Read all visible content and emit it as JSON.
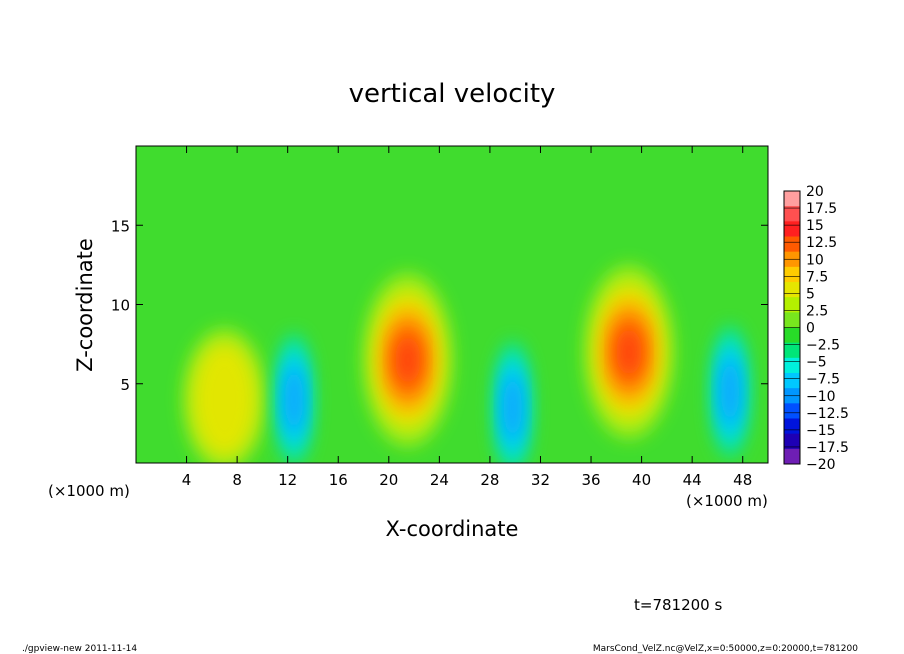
{
  "chart_data": {
    "type": "heatmap",
    "title": "vertical velocity",
    "xlabel": "X-coordinate",
    "ylabel": "Z-coordinate",
    "x_unit_label": "(×1000 m)",
    "x_unit_label_right": "(×1000 m)",
    "xlim": [
      0,
      50
    ],
    "ylim": [
      0,
      20
    ],
    "x_ticks": [
      "4",
      "8",
      "12",
      "16",
      "20",
      "24",
      "28",
      "32",
      "36",
      "40",
      "44",
      "48"
    ],
    "x_tick_values": [
      4,
      8,
      12,
      16,
      20,
      24,
      28,
      32,
      36,
      40,
      44,
      48
    ],
    "y_ticks": [
      "5",
      "10",
      "15"
    ],
    "y_tick_values": [
      5,
      10,
      15
    ],
    "colorbar": {
      "labels": [
        "20",
        "17.5",
        "15",
        "12.5",
        "10",
        "7.5",
        "5",
        "2.5",
        "0",
        "−2.5",
        "−5",
        "−7.5",
        "−10",
        "−12.5",
        "−15",
        "−17.5",
        "−20"
      ],
      "levels": [
        20,
        17.5,
        15,
        12.5,
        10,
        7.5,
        5,
        2.5,
        0,
        -2.5,
        -5,
        -7.5,
        -10,
        -12.5,
        -15,
        -17.5,
        -20
      ],
      "colors": [
        "#ff9f9f",
        "#ff5050",
        "#ff2020",
        "#ff5a00",
        "#ff9600",
        "#ffcc00",
        "#e6e600",
        "#b4f000",
        "#78e61e",
        "#28dc28",
        "#00e678",
        "#00f0dc",
        "#00c8ff",
        "#0096ff",
        "#0050ff",
        "#0014dc",
        "#1e00b4",
        "#6e1eb4"
      ]
    },
    "features": [
      {
        "kind": "updraft",
        "x": 21.5,
        "z": 6.5,
        "peak": 14
      },
      {
        "kind": "updraft",
        "x": 39,
        "z": 7,
        "peak": 14
      },
      {
        "kind": "updraft",
        "x": 7,
        "z": 4,
        "peak": 7
      },
      {
        "kind": "downdraft",
        "x": 12.5,
        "z": 4,
        "peak": -9
      },
      {
        "kind": "downdraft",
        "x": 29.8,
        "z": 3.5,
        "peak": -8
      },
      {
        "kind": "downdraft",
        "x": 47,
        "z": 4.5,
        "peak": -8
      }
    ],
    "time_label": "t=781200 s"
  },
  "footer": {
    "left": "./gpview-new   2011-11-14",
    "right": "MarsCond_VelZ.nc@VelZ,x=0:50000,z=0:20000,t=781200"
  }
}
